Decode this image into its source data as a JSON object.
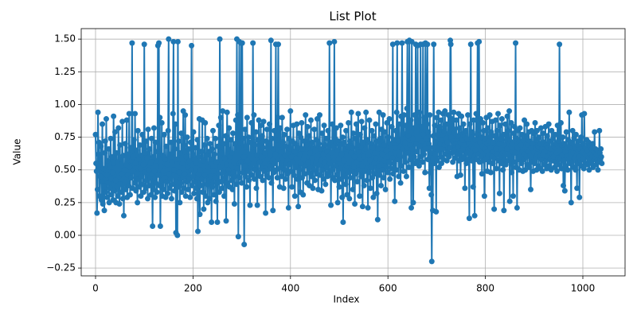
{
  "chart_data": {
    "type": "line",
    "title": "List Plot",
    "x_label": "Index",
    "y_label": "Value",
    "color": "#1f77b4",
    "markers": true,
    "grid": true,
    "xlim": [
      -29.4,
      1086.6
    ],
    "xticks": [
      0,
      200,
      400,
      600,
      800,
      1000
    ],
    "ylim": [
      -0.31,
      1.58
    ],
    "yticks": [
      {
        "value": -0.25,
        "label": "−0.25"
      },
      {
        "value": 0,
        "label": "0.00"
      },
      {
        "value": 0.25,
        "label": "0.25"
      },
      {
        "value": 0.5,
        "label": "0.50"
      },
      {
        "value": 0.75,
        "label": "0.75"
      },
      {
        "value": 1,
        "label": "1.00"
      },
      {
        "value": 1.25,
        "label": "1.25"
      },
      {
        "value": 1.5,
        "label": "1.50"
      }
    ],
    "values": [
      0.77,
      0.55,
      0.49,
      0.17,
      0.35,
      0.94,
      0.62,
      0.71,
      0.3,
      0.58,
      0.45,
      0.68,
      0.27,
      0.41,
      0.85,
      0.24,
      0.51,
      0.38,
      0.19,
      0.63,
      0.72,
      0.33,
      0.89,
      0.46,
      0.29,
      0.57,
      0.4,
      0.66,
      0.25,
      0.52,
      0.36,
      0.74,
      0.43,
      0.31,
      0.6,
      0.48,
      0.27,
      0.91,
      0.55,
      0.34,
      0.79,
      0.42,
      0.25,
      0.63,
      0.37,
      0.56,
      0.3,
      0.82,
      0.45,
      0.24,
      0.69,
      0.39,
      0.58,
      0.33,
      0.47,
      0.87,
      0.28,
      0.61,
      0.15,
      0.5,
      0.41,
      0.7,
      0.35,
      0.54,
      0.88,
      0.29,
      0.46,
      0.62,
      0.38,
      0.93,
      0.52,
      0.31,
      0.67,
      0.44,
      0.57,
      1.47,
      0.36,
      0.6,
      0.49,
      0.73,
      0.4,
      0.93,
      0.55,
      0.34,
      0.65,
      0.47,
      0.25,
      0.8,
      0.43,
      0.58,
      0.37,
      0.69,
      0.51,
      0.3,
      0.61,
      0.45,
      0.77,
      0.39,
      0.54,
      0.33,
      1.46,
      0.48,
      0.63,
      0.36,
      0.72,
      0.42,
      0.59,
      0.28,
      0.81,
      0.5,
      0.38,
      0.66,
      0.44,
      0.55,
      0.31,
      0.74,
      0.47,
      0.07,
      0.6,
      0.35,
      0.82,
      0.49,
      0.29,
      0.71,
      0.4,
      0.57,
      0.33,
      0.64,
      1.45,
      0.46,
      1.47,
      0.38,
      0.9,
      0.07,
      0.53,
      0.42,
      0.86,
      0.3,
      0.61,
      0.49,
      0.35,
      0.77,
      0.44,
      0.58,
      0.29,
      0.68,
      0.41,
      0.54,
      0.32,
      0.8,
      1.5,
      0.47,
      0.36,
      0.62,
      0.43,
      0.71,
      0.28,
      0.56,
      0.39,
      0.93,
      1.48,
      0.5,
      0.34,
      0.66,
      0.85,
      0.02,
      0.45,
      0.58,
      0.0,
      1.48,
      0.37,
      0.72,
      0.48,
      0.25,
      0.63,
      0.4,
      0.78,
      0.33,
      0.55,
      0.44,
      0.95,
      0.36,
      0.69,
      0.47,
      0.92,
      0.3,
      0.6,
      0.41,
      0.75,
      0.52,
      0.35,
      0.66,
      0.43,
      0.57,
      0.29,
      0.71,
      0.5,
      1.45,
      0.38,
      0.62,
      0.45,
      0.79,
      0.32,
      0.58,
      0.41,
      0.67,
      0.36,
      0.55,
      0.28,
      0.73,
      0.03,
      0.47,
      0.6,
      0.89,
      0.16,
      0.5,
      0.38,
      0.64,
      0.43,
      0.88,
      0.33,
      0.57,
      0.2,
      0.69,
      0.46,
      0.86,
      0.3,
      0.61,
      0.39,
      0.74,
      0.25,
      0.52,
      0.42,
      0.64,
      0.28,
      0.7,
      0.45,
      0.58,
      0.1,
      0.66,
      0.37,
      0.8,
      0.49,
      0.31,
      0.62,
      0.44,
      0.74,
      0.26,
      0.56,
      0.4,
      0.1,
      0.68,
      0.47,
      0.84,
      0.33,
      1.5,
      0.52,
      0.9,
      0.41,
      0.63,
      0.36,
      0.95,
      0.48,
      0.7,
      0.3,
      0.59,
      0.44,
      0.76,
      0.11,
      0.54,
      0.94,
      0.4,
      0.66,
      0.5,
      0.82,
      0.37,
      0.6,
      0.47,
      0.73,
      0.42,
      0.63,
      0.35,
      0.78,
      0.48,
      0.55,
      0.24,
      0.7,
      0.45,
      0.88,
      0.39,
      1.5,
      0.51,
      0.92,
      -0.01,
      0.67,
      1.48,
      0.44,
      0.83,
      0.56,
      1.47,
      0.4,
      1.47,
      0.48,
      0.74,
      0.6,
      -0.07,
      0.53,
      0.81,
      0.45,
      0.68,
      0.37,
      0.9,
      0.57,
      0.49,
      0.75,
      0.42,
      0.62,
      0.23,
      0.71,
      0.52,
      0.86,
      0.46,
      0.64,
      1.47,
      0.55,
      0.92,
      0.43,
      0.69,
      0.5,
      0.79,
      0.36,
      0.61,
      0.23,
      0.73,
      0.48,
      0.88,
      0.56,
      0.68,
      0.45,
      0.84,
      0.6,
      0.51,
      0.76,
      0.42,
      0.67,
      0.87,
      0.49,
      0.63,
      0.55,
      0.17,
      0.72,
      0.46,
      0.81,
      0.58,
      0.5,
      0.7,
      0.44,
      0.85,
      0.61,
      0.53,
      1.49,
      0.4,
      0.74,
      0.57,
      0.19,
      0.66,
      0.48,
      0.8,
      0.55,
      0.62,
      1.46,
      0.5,
      0.73,
      0.44,
      0.9,
      1.46,
      0.58,
      0.69,
      0.37,
      0.82,
      0.52,
      0.64,
      0.45,
      0.9,
      0.59,
      0.71,
      0.36,
      0.77,
      0.5,
      0.61,
      0.43,
      0.68,
      0.55,
      0.81,
      0.47,
      0.63,
      0.21,
      0.74,
      0.54,
      0.66,
      0.95,
      0.49,
      0.6,
      0.37,
      0.72,
      0.56,
      0.84,
      0.46,
      0.64,
      0.3,
      0.7,
      0.52,
      0.59,
      0.85,
      0.43,
      0.67,
      0.22,
      0.78,
      0.5,
      0.62,
      0.33,
      0.75,
      0.55,
      0.86,
      0.44,
      0.66,
      0.31,
      0.58,
      0.72,
      0.47,
      0.62,
      0.92,
      0.53,
      0.69,
      0.4,
      0.83,
      0.56,
      0.48,
      0.76,
      0.38,
      0.63,
      0.52,
      0.88,
      0.45,
      0.71,
      0.59,
      0.36,
      0.67,
      0.5,
      0.81,
      0.42,
      0.65,
      0.55,
      0.73,
      0.47,
      0.89,
      0.61,
      0.35,
      0.7,
      0.54,
      0.92,
      0.46,
      0.66,
      0.57,
      0.34,
      0.78,
      0.5,
      0.62,
      0.43,
      0.84,
      0.56,
      0.69,
      0.39,
      0.74,
      0.52,
      0.64,
      0.45,
      0.8,
      0.58,
      0.48,
      1.47,
      0.55,
      0.71,
      0.23,
      0.63,
      0.5,
      0.85,
      0.44,
      0.68,
      0.57,
      1.48,
      0.42,
      0.74,
      0.53,
      0.82,
      0.46,
      0.65,
      0.25,
      0.72,
      0.58,
      0.37,
      0.69,
      0.51,
      0.84,
      0.43,
      0.62,
      0.29,
      0.75,
      0.1,
      0.57,
      0.71,
      0.45,
      0.66,
      0.39,
      0.8,
      0.53,
      0.31,
      0.68,
      0.48,
      0.86,
      0.55,
      0.28,
      0.72,
      0.44,
      0.63,
      0.94,
      0.49,
      0.67,
      0.35,
      0.78,
      0.52,
      0.6,
      0.24,
      0.74,
      0.47,
      0.85,
      0.56,
      0.41,
      0.69,
      0.93,
      0.5,
      0.64,
      0.3,
      0.77,
      0.58,
      0.45,
      0.87,
      0.53,
      0.22,
      0.71,
      0.6,
      0.38,
      0.82,
      0.49,
      0.66,
      0.94,
      0.55,
      0.42,
      0.73,
      0.21,
      0.61,
      0.48,
      0.88,
      0.57,
      0.36,
      0.7,
      0.52,
      0.8,
      0.44,
      0.67,
      0.29,
      0.76,
      0.55,
      0.63,
      0.47,
      0.85,
      0.59,
      0.32,
      0.72,
      0.12,
      0.66,
      0.53,
      0.94,
      0.46,
      0.74,
      0.58,
      0.38,
      0.81,
      0.62,
      0.5,
      0.92,
      0.44,
      0.69,
      0.57,
      0.79,
      0.35,
      0.65,
      0.52,
      0.86,
      0.6,
      0.48,
      0.75,
      0.56,
      0.89,
      0.43,
      0.7,
      0.62,
      0.51,
      0.83,
      0.59,
      1.46,
      0.47,
      0.73,
      0.55,
      0.26,
      0.67,
      0.8,
      0.5,
      0.94,
      1.47,
      0.58,
      0.72,
      0.45,
      0.85,
      0.61,
      0.68,
      0.4,
      0.91,
      0.53,
      1.47,
      0.66,
      0.78,
      0.49,
      0.92,
      0.6,
      0.71,
      0.56,
      0.84,
      0.45,
      0.97,
      1.48,
      0.63,
      0.76,
      0.52,
      1.49,
      0.69,
      0.58,
      0.88,
      0.21,
      1.48,
      0.66,
      0.74,
      0.25,
      0.82,
      0.6,
      0.92,
      0.55,
      1.46,
      0.7,
      0.79,
      0.64,
      1.45,
      0.57,
      0.87,
      0.53,
      0.94,
      0.68,
      1.46,
      0.6,
      0.83,
      0.72,
      0.56,
      1.46,
      0.77,
      0.62,
      0.9,
      0.48,
      1.47,
      0.74,
      0.66,
      0.85,
      1.46,
      0.58,
      0.79,
      0.7,
      0.36,
      0.92,
      0.48,
      0.67,
      0.31,
      -0.2,
      0.63,
      0.19,
      0.76,
      1.46,
      0.55,
      0.84,
      0.62,
      0.71,
      0.18,
      0.9,
      0.57,
      0.77,
      0.65,
      0.94,
      0.52,
      0.83,
      0.7,
      0.6,
      0.88,
      0.55,
      0.73,
      0.66,
      0.93,
      0.58,
      0.8,
      0.69,
      0.95,
      0.62,
      0.74,
      0.85,
      0.57,
      0.71,
      0.64,
      0.92,
      0.6,
      0.78,
      0.67,
      1.49,
      1.46,
      0.75,
      0.63,
      0.89,
      0.56,
      0.72,
      0.94,
      0.65,
      0.81,
      0.59,
      0.7,
      0.88,
      0.62,
      0.45,
      0.76,
      0.68,
      0.93,
      0.57,
      0.82,
      0.71,
      0.46,
      0.64,
      0.91,
      0.58,
      0.73,
      0.66,
      0.85,
      0.6,
      0.78,
      0.36,
      0.69,
      0.8,
      0.55,
      0.74,
      0.63,
      0.92,
      0.58,
      0.7,
      0.13,
      0.85,
      0.61,
      1.46,
      0.68,
      0.57,
      0.79,
      0.66,
      0.37,
      0.88,
      0.6,
      0.15,
      0.73,
      0.65,
      0.93,
      0.58,
      0.77,
      1.47,
      0.62,
      0.84,
      1.48,
      0.56,
      0.71,
      0.89,
      0.6,
      0.75,
      0.47,
      0.68,
      0.86,
      0.57,
      0.8,
      0.3,
      0.66,
      0.74,
      0.58,
      0.9,
      0.64,
      0.49,
      0.82,
      0.61,
      0.72,
      0.56,
      0.92,
      0.67,
      0.48,
      0.79,
      0.6,
      0.87,
      0.55,
      0.71,
      0.64,
      0.2,
      0.76,
      0.59,
      0.88,
      0.66,
      0.51,
      0.8,
      0.62,
      0.93,
      0.57,
      0.7,
      0.32,
      0.84,
      0.6,
      0.74,
      0.55,
      0.89,
      0.63,
      0.5,
      0.77,
      0.19,
      0.69,
      0.61,
      0.85,
      0.54,
      0.73,
      0.66,
      0.91,
      0.57,
      0.8,
      0.62,
      0.95,
      0.26,
      0.72,
      0.59,
      0.86,
      0.48,
      0.7,
      0.64,
      0.3,
      0.78,
      0.56,
      0.83,
      0.63,
      1.47,
      0.52,
      0.74,
      0.21,
      0.67,
      0.8,
      0.58,
      0.71,
      0.5,
      0.82,
      0.6,
      0.69,
      0.55,
      0.77,
      0.64,
      0.49,
      0.73,
      0.58,
      0.88,
      0.62,
      0.5,
      0.76,
      0.6,
      0.85,
      0.54,
      0.69,
      0.64,
      0.79,
      0.52,
      0.72,
      0.61,
      0.35,
      0.67,
      0.8,
      0.56,
      0.7,
      0.49,
      0.78,
      0.63,
      0.55,
      0.86,
      0.59,
      0.73,
      0.5,
      0.8,
      0.62,
      0.68,
      0.53,
      0.75,
      0.6,
      0.7,
      0.51,
      0.82,
      0.58,
      0.66,
      0.49,
      0.78,
      0.61,
      0.71,
      0.54,
      0.64,
      0.83,
      0.57,
      0.69,
      0.51,
      0.76,
      0.6,
      0.67,
      0.85,
      0.53,
      0.72,
      0.58,
      0.66,
      0.5,
      0.8,
      0.62,
      0.57,
      0.74,
      0.6,
      0.68,
      0.52,
      0.77,
      0.56,
      0.7,
      0.63,
      0.49,
      0.84,
      0.59,
      0.72,
      0.54,
      1.46,
      0.65,
      0.58,
      0.86,
      0.51,
      0.69,
      0.61,
      0.75,
      0.38,
      0.57,
      0.7,
      0.34,
      0.64,
      0.53,
      0.79,
      0.6,
      0.67,
      0.5,
      0.73,
      0.58,
      0.94,
      0.55,
      0.68,
      0.62,
      0.25,
      0.71,
      0.56,
      0.8,
      0.63,
      0.52,
      0.74,
      0.59,
      0.67,
      0.5,
      0.77,
      0.61,
      0.36,
      0.69,
      0.55,
      0.72,
      0.6,
      0.29,
      0.66,
      0.57,
      0.75,
      0.53,
      0.92,
      0.64,
      0.58,
      0.7,
      0.51,
      0.93,
      0.62,
      0.55,
      0.67,
      0.6,
      0.73,
      0.54,
      0.65,
      0.59,
      0.71,
      0.5,
      0.68,
      0.57,
      0.62,
      0.55,
      0.66,
      0.6,
      0.7,
      0.52,
      0.64,
      0.58,
      0.79,
      0.6,
      0.66,
      0.54,
      0.62,
      0.57,
      0.65,
      0.5,
      0.61,
      0.56,
      0.8,
      0.63,
      0.58,
      0.66,
      0.6,
      0.55
    ]
  }
}
